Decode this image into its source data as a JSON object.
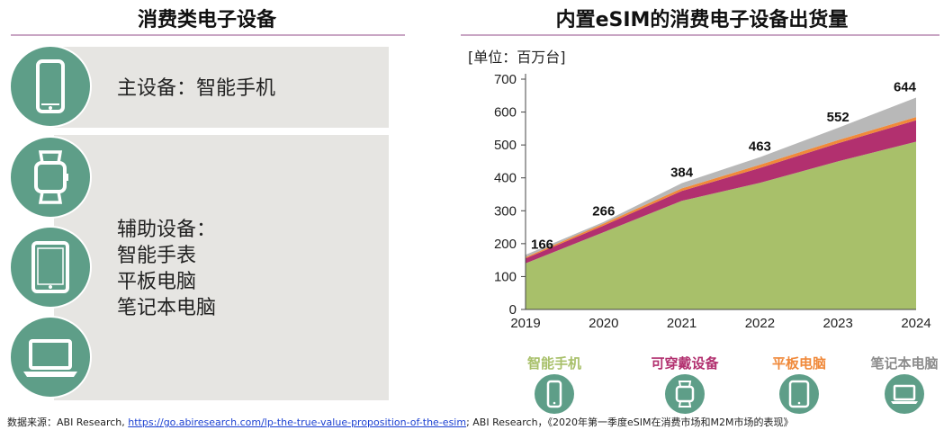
{
  "left": {
    "title": "消费类电子设备",
    "main_label": "主设备：智能手机",
    "aux_lines": [
      "辅助设备：",
      "智能手表",
      "平板电脑",
      "笔记本电脑"
    ],
    "icons": [
      "phone-icon",
      "watch-icon",
      "tablet-icon",
      "laptop-icon"
    ]
  },
  "right": {
    "title": "内置eSIM的消费电子设备出货量",
    "unit": "[单位：百万台]"
  },
  "legend": [
    {
      "label": "智能手机",
      "color": "#a8c06a",
      "icon": "phone-icon"
    },
    {
      "label": "可穿戴设备",
      "color": "#b2306f",
      "icon": "watch-icon"
    },
    {
      "label": "平板电脑",
      "color": "#f0893a",
      "icon": "tablet-icon"
    },
    {
      "label": "笔记本电脑",
      "color": "#8c8c8c",
      "icon": "laptop-icon"
    }
  ],
  "chart_data": {
    "type": "area",
    "stacked": true,
    "x": [
      "2019",
      "2020",
      "2021",
      "2022",
      "2023",
      "2024"
    ],
    "ylim": [
      0,
      700
    ],
    "yticks": [
      0,
      100,
      200,
      300,
      400,
      500,
      600,
      700
    ],
    "grid": false,
    "series": [
      {
        "name": "智能手机",
        "color": "#a8c06a",
        "values": [
          140,
          235,
          330,
          385,
          450,
          510
        ]
      },
      {
        "name": "可穿戴设备",
        "color": "#b2306f",
        "values": [
          15,
          20,
          30,
          45,
          55,
          65
        ]
      },
      {
        "name": "平板电脑",
        "color": "#f0893a",
        "values": [
          4,
          6,
          8,
          10,
          10,
          10
        ]
      },
      {
        "name": "笔记本电脑",
        "color": "#b8b8b8",
        "values": [
          7,
          5,
          16,
          23,
          37,
          59
        ]
      }
    ],
    "totals": [
      166,
      266,
      384,
      463,
      552,
      644
    ]
  },
  "source": {
    "prefix": "数据来源：ABI Research, ",
    "link": "https://go.abiresearch.com/lp-the-true-value-proposition-of-the-esim",
    "suffix": "; ABI Research，《2020年第一季度eSIM在消费市场和M2M市场的表现》"
  }
}
